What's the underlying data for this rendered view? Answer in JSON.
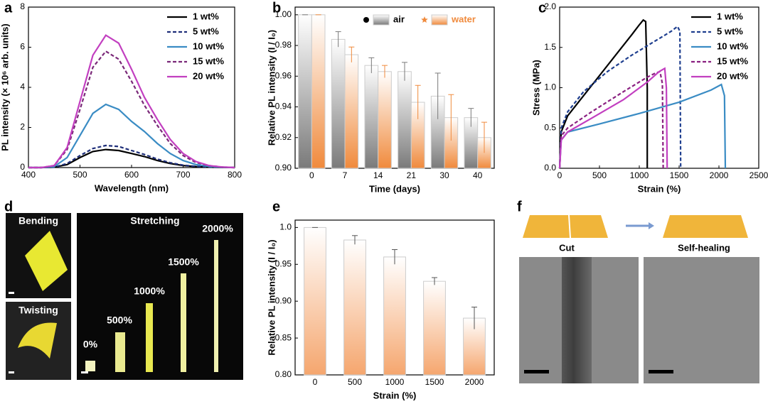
{
  "chart_data": [
    {
      "panel": "a",
      "type": "line",
      "xlabel": "Wavelength (nm)",
      "ylabel": "PL intensity (× 10⁶ arb. units)",
      "x": [
        400,
        425,
        450,
        475,
        500,
        525,
        550,
        575,
        600,
        625,
        650,
        675,
        700,
        725,
        750,
        775,
        800
      ],
      "series": [
        {
          "name": "1 wt%",
          "color": "#000000",
          "dash": false,
          "values": [
            0,
            0,
            0.02,
            0.15,
            0.5,
            0.8,
            0.9,
            0.85,
            0.7,
            0.55,
            0.35,
            0.2,
            0.1,
            0.05,
            0.02,
            0.01,
            0
          ]
        },
        {
          "name": "5 wt%",
          "color": "#1f2f7a",
          "dash": true,
          "values": [
            0,
            0,
            0.02,
            0.2,
            0.6,
            0.95,
            1.1,
            1.05,
            0.85,
            0.65,
            0.42,
            0.24,
            0.12,
            0.06,
            0.03,
            0.01,
            0
          ]
        },
        {
          "name": "10 wt%",
          "color": "#3a8cc4",
          "dash": false,
          "values": [
            0,
            0,
            0.05,
            0.5,
            1.6,
            2.7,
            3.15,
            2.9,
            2.3,
            1.8,
            1.2,
            0.7,
            0.35,
            0.15,
            0.06,
            0.02,
            0
          ]
        },
        {
          "name": "15 wt%",
          "color": "#7a2878",
          "dash": true,
          "values": [
            0,
            0,
            0.1,
            0.9,
            2.9,
            5.0,
            5.8,
            5.4,
            4.3,
            3.1,
            2.1,
            1.2,
            0.6,
            0.25,
            0.1,
            0.03,
            0
          ]
        },
        {
          "name": "20 wt%",
          "color": "#c23fc0",
          "dash": false,
          "values": [
            0,
            0,
            0.1,
            1.0,
            3.3,
            5.6,
            6.6,
            6.2,
            4.9,
            3.5,
            2.4,
            1.4,
            0.7,
            0.3,
            0.1,
            0.03,
            0
          ]
        }
      ],
      "xlim": [
        400,
        800
      ],
      "xticks": [
        400,
        500,
        600,
        700,
        800
      ],
      "ylim": [
        0,
        8
      ],
      "yticks": [
        0,
        2,
        4,
        6,
        8
      ],
      "legend": "upper right"
    },
    {
      "panel": "b",
      "type": "bar",
      "xlabel": "Time (days)",
      "ylabel": "Relative PL intensity (I / I₀)",
      "categories": [
        "0",
        "7",
        "14",
        "21",
        "30",
        "40"
      ],
      "series": [
        {
          "name": "air",
          "color": "#7a7a7a",
          "marker": "circle",
          "values": [
            1.0,
            0.984,
            0.967,
            0.963,
            0.947,
            0.933
          ],
          "errors": [
            0,
            0.005,
            0.005,
            0.006,
            0.015,
            0.006
          ]
        },
        {
          "name": "water",
          "color": "#f08a3c",
          "marker": "star",
          "values": [
            1.0,
            0.974,
            0.963,
            0.943,
            0.933,
            0.92
          ],
          "errors": [
            0,
            0.005,
            0.004,
            0.011,
            0.015,
            0.01
          ]
        }
      ],
      "ylim": [
        0.9,
        1.005
      ],
      "yticks": [
        {
          "value": 0.9,
          "label": "0.90"
        },
        0.92,
        0.94,
        0.96,
        0.98,
        {
          "value": 1,
          "label": "1.00"
        }
      ],
      "legend": "top"
    },
    {
      "panel": "c",
      "type": "line",
      "xlabel": "Strain (%)",
      "ylabel": "Stress (MPa)",
      "series": [
        {
          "name": "1 wt%",
          "color": "#000000",
          "dash": false,
          "x": [
            0,
            20,
            100,
            300,
            500,
            700,
            900,
            1000,
            1050,
            1080,
            1100,
            1100
          ],
          "values": [
            0,
            0.45,
            0.65,
            0.9,
            1.15,
            1.4,
            1.65,
            1.78,
            1.84,
            1.82,
            1.0,
            0
          ]
        },
        {
          "name": "5 wt%",
          "color": "#1f3f8f",
          "dash": true,
          "x": [
            0,
            20,
            100,
            300,
            600,
            900,
            1200,
            1400,
            1480,
            1510,
            1520
          ],
          "values": [
            0,
            0.5,
            0.7,
            0.95,
            1.2,
            1.4,
            1.58,
            1.7,
            1.76,
            1.7,
            0
          ]
        },
        {
          "name": "10 wt%",
          "color": "#3a8cc4",
          "dash": false,
          "x": [
            0,
            20,
            100,
            500,
            1000,
            1500,
            1900,
            2030,
            2070,
            2080
          ],
          "values": [
            0,
            0.35,
            0.45,
            0.55,
            0.68,
            0.82,
            0.97,
            1.04,
            0.9,
            0
          ]
        },
        {
          "name": "15 wt%",
          "color": "#8a2080",
          "dash": true,
          "x": [
            0,
            20,
            100,
            400,
            800,
            1100,
            1200,
            1260,
            1290,
            1300
          ],
          "values": [
            0,
            0.4,
            0.5,
            0.7,
            0.95,
            1.13,
            1.18,
            1.2,
            1.05,
            0
          ]
        },
        {
          "name": "20 wt%",
          "color": "#c23fc0",
          "dash": false,
          "x": [
            0,
            20,
            100,
            400,
            800,
            1100,
            1250,
            1320,
            1340,
            1350
          ],
          "values": [
            0,
            0.35,
            0.45,
            0.62,
            0.85,
            1.07,
            1.2,
            1.24,
            1.0,
            0
          ]
        }
      ],
      "xlim": [
        0,
        2500
      ],
      "xticks": [
        0,
        500,
        1000,
        1500,
        2000,
        2500
      ],
      "ylim": [
        0,
        2
      ],
      "yticks": [
        {
          "value": 0,
          "label": "0.0"
        },
        0.5,
        {
          "value": 1,
          "label": "1.0"
        },
        1.5,
        {
          "value": 2,
          "label": "2.0"
        }
      ],
      "legend": "upper right"
    },
    {
      "panel": "e",
      "type": "bar",
      "xlabel": "Strain (%)",
      "ylabel": "Relative PL intensity (I / I₀)",
      "categories": [
        "0",
        "500",
        "1000",
        "1500",
        "2000"
      ],
      "color": "#f5a66e",
      "values": [
        1.0,
        0.983,
        0.96,
        0.927,
        0.877
      ],
      "errors": [
        0,
        0.006,
        0.01,
        0.005,
        0.015
      ],
      "ylim": [
        0.8,
        1.01
      ],
      "yticks": [
        {
          "value": 0.8,
          "label": "0.80"
        },
        0.85,
        {
          "value": 0.9,
          "label": "0.90"
        },
        0.95,
        {
          "value": 1,
          "label": "1.0"
        }
      ]
    }
  ],
  "photos": [
    {
      "panel": "d",
      "texts": [
        "Bending",
        "Twisting",
        "Stretching",
        "0%",
        "500%",
        "1000%",
        "1500%",
        "2000%"
      ]
    },
    {
      "panel": "f",
      "texts": [
        "Cut",
        "Self-healing"
      ]
    }
  ]
}
